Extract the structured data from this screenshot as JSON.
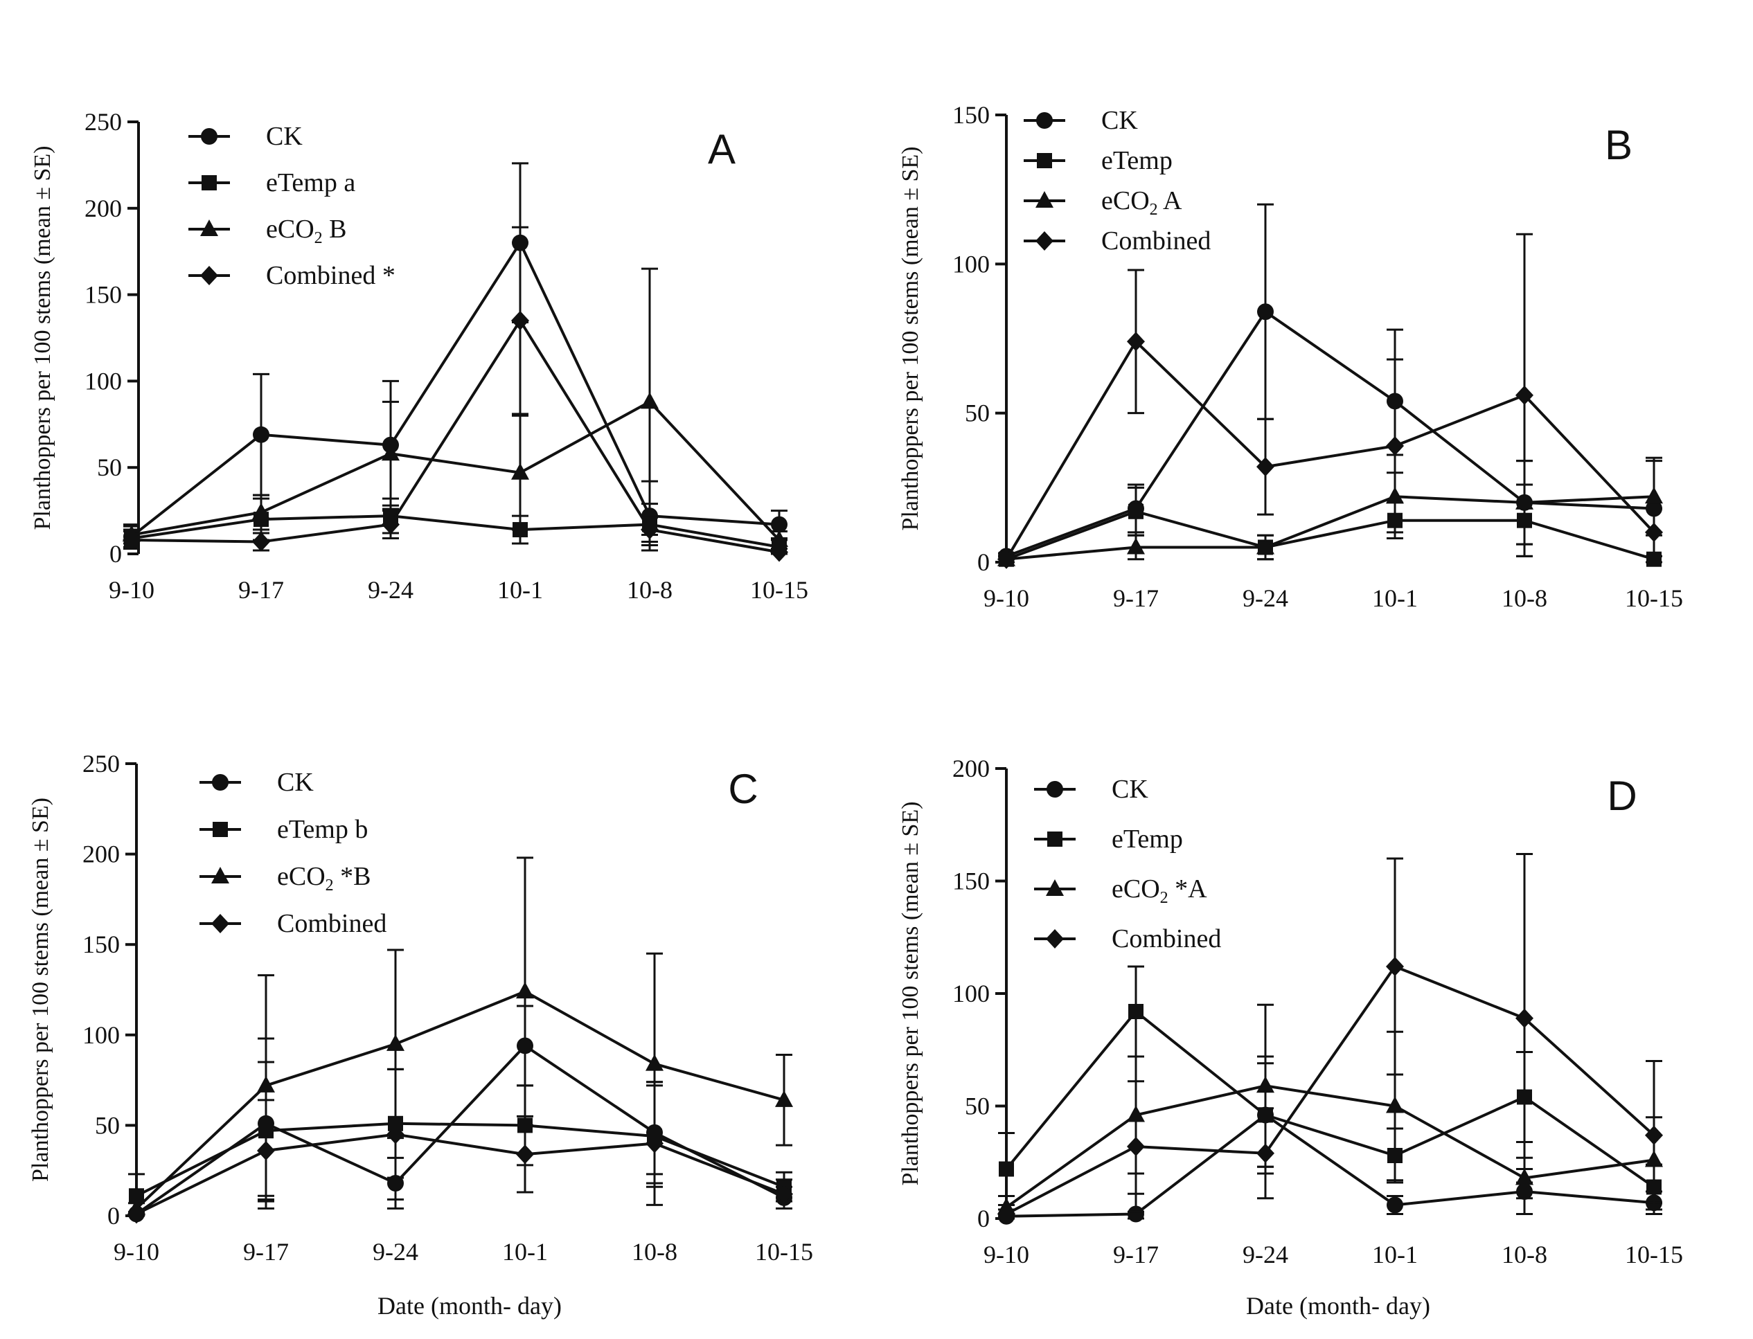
{
  "figure": {
    "xlabel": "Date (month- day)",
    "ylabel": "Planthoppers per 100 stems (mean ± SE)"
  },
  "chart_data": [
    {
      "type": "line",
      "panel": "A",
      "categories": [
        "9-10",
        "9-17",
        "9-24",
        "10-1",
        "10-8",
        "10-15"
      ],
      "ylim": [
        0,
        250
      ],
      "yticks": [
        0,
        50,
        100,
        150,
        200,
        250
      ],
      "legend": [
        {
          "name": "CK",
          "suffix": ""
        },
        {
          "name": "eTemp",
          "suffix": "a"
        },
        {
          "name": "eCO2",
          "suffix": "B"
        },
        {
          "name": "Combined",
          "suffix": "*"
        }
      ],
      "series": [
        {
          "name": "CK",
          "marker": "circle",
          "values": [
            10,
            69,
            63,
            180,
            22,
            17
          ],
          "err": [
            7,
            35,
            37,
            46,
            20,
            8
          ]
        },
        {
          "name": "eTemp",
          "marker": "square",
          "values": [
            9,
            20,
            22,
            14,
            17,
            4
          ],
          "err": [
            5,
            12,
            10,
            8,
            12,
            4
          ]
        },
        {
          "name": "eCO2",
          "marker": "triangle",
          "values": [
            11,
            24,
            58,
            47,
            88,
            8
          ],
          "err": [
            5,
            10,
            30,
            33,
            77,
            5
          ]
        },
        {
          "name": "Combined",
          "marker": "diamond",
          "values": [
            8,
            7,
            17,
            135,
            14,
            1
          ],
          "err": [
            5,
            5,
            8,
            54,
            7,
            2
          ]
        }
      ]
    },
    {
      "type": "line",
      "panel": "B",
      "categories": [
        "9-10",
        "9-17",
        "9-24",
        "10-1",
        "10-8",
        "10-15"
      ],
      "ylim": [
        0,
        150
      ],
      "yticks": [
        0,
        50,
        100,
        150
      ],
      "legend": [
        {
          "name": "CK",
          "suffix": ""
        },
        {
          "name": "eTemp",
          "suffix": ""
        },
        {
          "name": "eCO2",
          "suffix": "A"
        },
        {
          "name": "Combined",
          "suffix": ""
        }
      ],
      "series": [
        {
          "name": "CK",
          "marker": "circle",
          "values": [
            2,
            18,
            84,
            54,
            20,
            18
          ],
          "err": [
            1,
            8,
            36,
            24,
            14,
            16
          ]
        },
        {
          "name": "eTemp",
          "marker": "square",
          "values": [
            1,
            17,
            5,
            14,
            14,
            1
          ],
          "err": [
            1,
            8,
            4,
            6,
            12,
            1
          ]
        },
        {
          "name": "eCO2",
          "marker": "triangle",
          "values": [
            1,
            5,
            5,
            22,
            20,
            22
          ],
          "err": [
            1,
            4,
            4,
            14,
            14,
            13
          ]
        },
        {
          "name": "Combined",
          "marker": "diamond",
          "values": [
            1,
            74,
            32,
            39,
            56,
            10
          ],
          "err": [
            1,
            24,
            16,
            29,
            54,
            8
          ]
        }
      ]
    },
    {
      "type": "line",
      "panel": "C",
      "categories": [
        "9-10",
        "9-17",
        "9-24",
        "10-1",
        "10-8",
        "10-15"
      ],
      "ylim": [
        0,
        250
      ],
      "yticks": [
        0,
        50,
        100,
        150,
        200,
        250
      ],
      "legend": [
        {
          "name": "CK",
          "suffix": ""
        },
        {
          "name": "eTemp",
          "suffix": "b"
        },
        {
          "name": "eCO2",
          "suffix": "*B"
        },
        {
          "name": "Combined",
          "suffix": ""
        }
      ],
      "series": [
        {
          "name": "CK",
          "marker": "circle",
          "values": [
            1,
            51,
            18,
            94,
            46,
            10
          ],
          "err": [
            1,
            47,
            14,
            22,
            28,
            6
          ]
        },
        {
          "name": "eTemp",
          "marker": "square",
          "values": [
            11,
            47,
            51,
            50,
            44,
            16
          ],
          "err": [
            12,
            38,
            30,
            22,
            28,
            8
          ]
        },
        {
          "name": "eCO2",
          "marker": "triangle",
          "values": [
            4,
            72,
            95,
            124,
            84,
            64
          ],
          "err": [
            3,
            61,
            52,
            74,
            61,
            25
          ]
        },
        {
          "name": "Combined",
          "marker": "diamond",
          "values": [
            1,
            36,
            45,
            34,
            40,
            12
          ],
          "err": [
            1,
            28,
            36,
            21,
            34,
            8
          ]
        }
      ]
    },
    {
      "type": "line",
      "panel": "D",
      "categories": [
        "9-10",
        "9-17",
        "9-24",
        "10-1",
        "10-8",
        "10-15"
      ],
      "ylim": [
        0,
        200
      ],
      "yticks": [
        0,
        50,
        100,
        150,
        200
      ],
      "legend": [
        {
          "name": "CK",
          "suffix": ""
        },
        {
          "name": "eTemp",
          "suffix": ""
        },
        {
          "name": "eCO2",
          "suffix": "*A"
        },
        {
          "name": "Combined",
          "suffix": ""
        }
      ],
      "series": [
        {
          "name": "CK",
          "marker": "circle",
          "values": [
            1,
            2,
            46,
            6,
            12,
            7
          ],
          "err": [
            1,
            9,
            26,
            4,
            10,
            5
          ]
        },
        {
          "name": "eTemp",
          "marker": "square",
          "values": [
            22,
            92,
            46,
            28,
            54,
            14
          ],
          "err": [
            16,
            20,
            23,
            12,
            20,
            10
          ]
        },
        {
          "name": "eCO2",
          "marker": "triangle",
          "values": [
            5,
            46,
            59,
            50,
            18,
            26
          ],
          "err": [
            5,
            26,
            36,
            33,
            9,
            19
          ]
        },
        {
          "name": "Combined",
          "marker": "diamond",
          "values": [
            2,
            32,
            29,
            112,
            89,
            37
          ],
          "err": [
            2,
            29,
            20,
            48,
            73,
            33
          ]
        }
      ]
    }
  ]
}
